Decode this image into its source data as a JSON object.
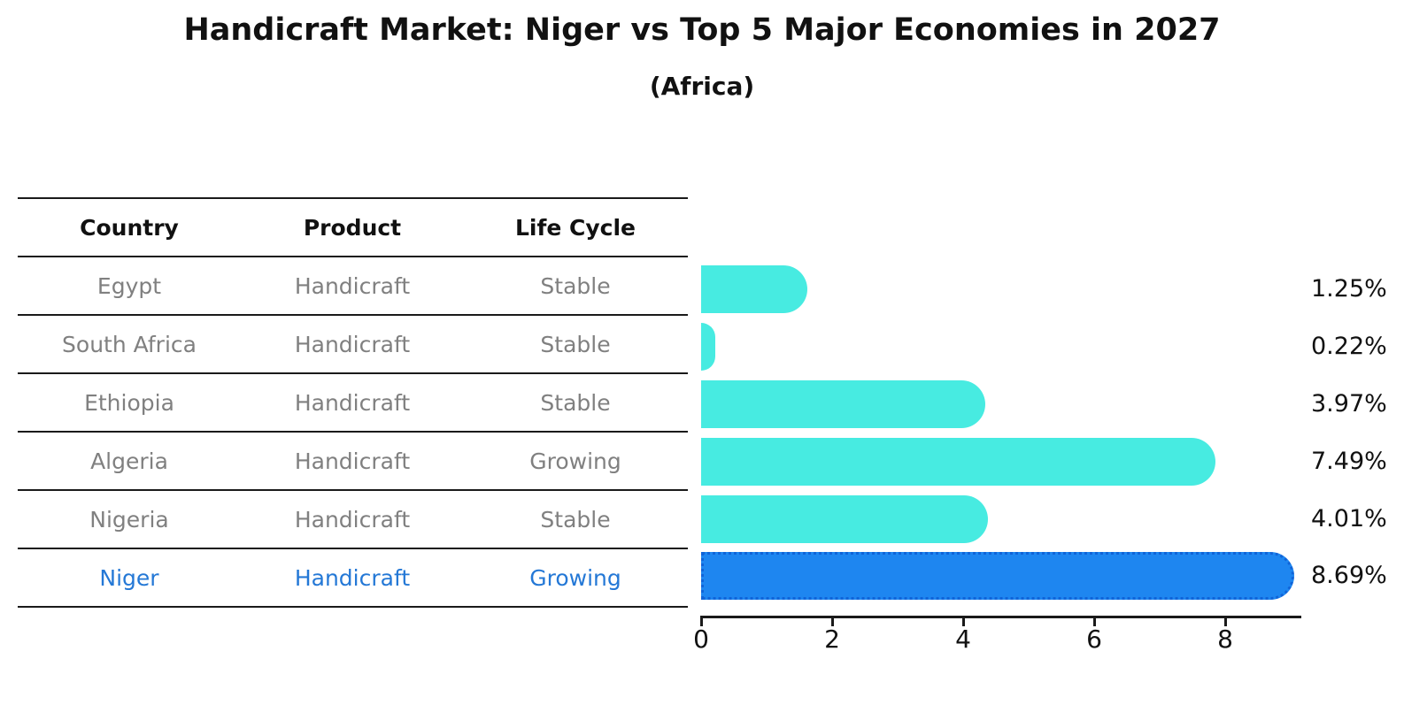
{
  "title": "Handicraft Market: Niger vs Top 5 Major Economies in 2027",
  "subtitle": "(Africa)",
  "table": {
    "headers": [
      "Country",
      "Product",
      "Life Cycle"
    ],
    "rows": [
      {
        "country": "Egypt",
        "product": "Handicraft",
        "life_cycle": "Stable",
        "highlight": false
      },
      {
        "country": "South Africa",
        "product": "Handicraft",
        "life_cycle": "Stable",
        "highlight": false
      },
      {
        "country": "Ethiopia",
        "product": "Handicraft",
        "life_cycle": "Stable",
        "highlight": false
      },
      {
        "country": "Algeria",
        "product": "Handicraft",
        "life_cycle": "Growing",
        "highlight": false
      },
      {
        "country": "Nigeria",
        "product": "Handicraft",
        "life_cycle": "Stable",
        "highlight": false
      },
      {
        "country": "Niger",
        "product": "Handicraft",
        "life_cycle": "Growing",
        "highlight": true
      }
    ]
  },
  "chart_data": {
    "type": "bar",
    "orientation": "horizontal",
    "title": "Handicraft Market: Niger vs Top 5 Major Economies in 2027",
    "subtitle": "(Africa)",
    "categories": [
      "Egypt",
      "South Africa",
      "Ethiopia",
      "Algeria",
      "Nigeria",
      "Niger"
    ],
    "values": [
      1.25,
      0.22,
      3.97,
      7.49,
      4.01,
      8.69
    ],
    "value_labels": [
      "1.25%",
      "0.22%",
      "3.97%",
      "7.49%",
      "4.01%",
      "8.69%"
    ],
    "unit": "%",
    "x_ticks": [
      0,
      2,
      4,
      6,
      8
    ],
    "xlim": [
      0,
      9.2
    ],
    "grid": false,
    "legend": "none",
    "bar_color": "#47EBE1",
    "highlight_color": "#1E86F0",
    "highlight_border_color": "#1064d8",
    "highlight_index": 5
  },
  "colors": {
    "title_text": "#111111",
    "table_text_muted": "#808080",
    "table_highlight_text": "#2478D6",
    "axis": "#1a1a1a",
    "background": "#ffffff"
  }
}
